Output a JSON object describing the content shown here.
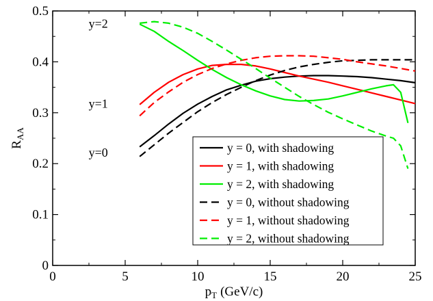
{
  "chart_data": {
    "type": "line",
    "xlabel": "p",
    "xlabel_sub": "T",
    "xlabel_unit": "(GeV/c)",
    "ylabel": "R",
    "ylabel_sub": "AA",
    "xlim": [
      0,
      25
    ],
    "ylim": [
      0,
      0.5
    ],
    "xticks": [
      "0",
      "5",
      "10",
      "15",
      "20",
      "25"
    ],
    "yticks": [
      "0",
      "0.1",
      "0.2",
      "0.3",
      "0.4",
      "0.5"
    ],
    "grid": false,
    "legend_position": "bottom-right",
    "annotations": [
      {
        "text": "y=2",
        "x": 4.0,
        "y": 0.475
      },
      {
        "text": "y=1",
        "x": 4.0,
        "y": 0.318
      },
      {
        "text": "y=0",
        "x": 4.0,
        "y": 0.222
      }
    ],
    "series": [
      {
        "name": "y = 0, with shadowing",
        "color": "#000000",
        "dash": "solid",
        "points": [
          [
            6,
            0.233
          ],
          [
            7,
            0.255
          ],
          [
            8,
            0.278
          ],
          [
            9,
            0.299
          ],
          [
            10,
            0.317
          ],
          [
            11,
            0.332
          ],
          [
            12,
            0.345
          ],
          [
            13,
            0.354
          ],
          [
            14,
            0.362
          ],
          [
            15,
            0.367
          ],
          [
            16,
            0.37
          ],
          [
            17,
            0.372
          ],
          [
            18,
            0.373
          ],
          [
            19,
            0.373
          ],
          [
            20,
            0.372
          ],
          [
            21,
            0.371
          ],
          [
            22,
            0.369
          ],
          [
            23,
            0.366
          ],
          [
            24,
            0.363
          ],
          [
            25,
            0.359
          ]
        ]
      },
      {
        "name": "y = 1, with shadowing",
        "color": "#ff0000",
        "dash": "solid",
        "points": [
          [
            6,
            0.316
          ],
          [
            7,
            0.34
          ],
          [
            8,
            0.36
          ],
          [
            9,
            0.375
          ],
          [
            10,
            0.386
          ],
          [
            11,
            0.393
          ],
          [
            12,
            0.395
          ],
          [
            13,
            0.395
          ],
          [
            14,
            0.392
          ],
          [
            15,
            0.386
          ],
          [
            16,
            0.379
          ],
          [
            17,
            0.372
          ],
          [
            18,
            0.366
          ],
          [
            19,
            0.36
          ],
          [
            20,
            0.353
          ],
          [
            21,
            0.346
          ],
          [
            22,
            0.339
          ],
          [
            23,
            0.332
          ],
          [
            24,
            0.325
          ],
          [
            25,
            0.318
          ]
        ]
      },
      {
        "name": "y = 2, with shadowing",
        "color": "#00ee00",
        "dash": "solid",
        "points": [
          [
            6,
            0.474
          ],
          [
            7,
            0.46
          ],
          [
            8,
            0.44
          ],
          [
            9,
            0.422
          ],
          [
            10,
            0.403
          ],
          [
            11,
            0.385
          ],
          [
            12,
            0.369
          ],
          [
            13,
            0.355
          ],
          [
            14,
            0.343
          ],
          [
            15,
            0.333
          ],
          [
            16,
            0.326
          ],
          [
            17,
            0.323
          ],
          [
            18,
            0.324
          ],
          [
            19,
            0.327
          ],
          [
            20,
            0.333
          ],
          [
            21,
            0.34
          ],
          [
            22,
            0.347
          ],
          [
            23,
            0.353
          ],
          [
            23.5,
            0.355
          ],
          [
            24,
            0.34
          ],
          [
            24.5,
            0.28
          ]
        ]
      },
      {
        "name": "y = 0, without shadowing",
        "color": "#000000",
        "dash": "dashed",
        "points": [
          [
            6,
            0.214
          ],
          [
            7,
            0.237
          ],
          [
            8,
            0.26
          ],
          [
            9,
            0.281
          ],
          [
            10,
            0.302
          ],
          [
            11,
            0.32
          ],
          [
            12,
            0.336
          ],
          [
            13,
            0.35
          ],
          [
            14,
            0.363
          ],
          [
            15,
            0.374
          ],
          [
            16,
            0.383
          ],
          [
            17,
            0.39
          ],
          [
            18,
            0.395
          ],
          [
            19,
            0.399
          ],
          [
            20,
            0.402
          ],
          [
            21,
            0.403
          ],
          [
            22,
            0.404
          ],
          [
            23,
            0.404
          ],
          [
            24,
            0.404
          ],
          [
            25,
            0.404
          ]
        ]
      },
      {
        "name": "y = 1, without shadowing",
        "color": "#ff0000",
        "dash": "dashed",
        "points": [
          [
            6,
            0.294
          ],
          [
            7,
            0.32
          ],
          [
            8,
            0.341
          ],
          [
            9,
            0.36
          ],
          [
            10,
            0.375
          ],
          [
            11,
            0.387
          ],
          [
            12,
            0.396
          ],
          [
            13,
            0.403
          ],
          [
            14,
            0.408
          ],
          [
            15,
            0.411
          ],
          [
            16,
            0.412
          ],
          [
            17,
            0.412
          ],
          [
            18,
            0.411
          ],
          [
            19,
            0.408
          ],
          [
            20,
            0.405
          ],
          [
            21,
            0.4
          ],
          [
            22,
            0.396
          ],
          [
            23,
            0.392
          ],
          [
            24,
            0.387
          ],
          [
            25,
            0.382
          ]
        ]
      },
      {
        "name": "y = 2, without shadowing",
        "color": "#00ee00",
        "dash": "dashed",
        "points": [
          [
            6,
            0.476
          ],
          [
            7,
            0.479
          ],
          [
            8,
            0.476
          ],
          [
            9,
            0.468
          ],
          [
            10,
            0.456
          ],
          [
            11,
            0.44
          ],
          [
            12,
            0.423
          ],
          [
            13,
            0.405
          ],
          [
            14,
            0.387
          ],
          [
            15,
            0.368
          ],
          [
            16,
            0.35
          ],
          [
            17,
            0.332
          ],
          [
            18,
            0.316
          ],
          [
            19,
            0.301
          ],
          [
            20,
            0.288
          ],
          [
            21,
            0.276
          ],
          [
            22,
            0.264
          ],
          [
            23,
            0.254
          ],
          [
            23.5,
            0.25
          ],
          [
            24,
            0.235
          ],
          [
            24.5,
            0.19
          ]
        ]
      }
    ]
  }
}
